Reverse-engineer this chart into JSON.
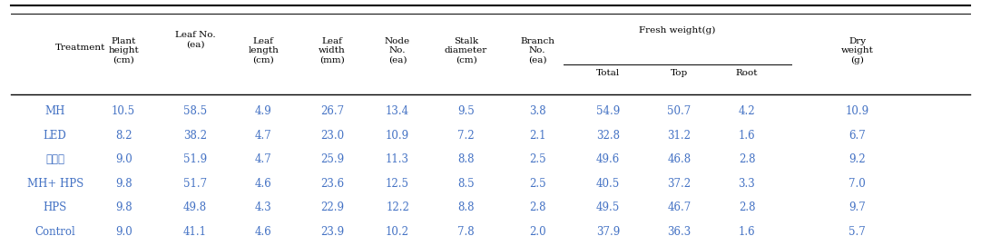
{
  "headers_row1": [
    "Treatment",
    "Plant\nheight\n(cm)",
    "Leaf No.\n(ea)",
    "Leaf\nlength\n(cm)",
    "Leaf\nwidth\n(mm)",
    "Node\nNo.\n(ea)",
    "Stalk\ndiameter\n(cm)",
    "Branch\nNo.\n(ea)",
    "Fresh weight(g)",
    "",
    "",
    "Dry\nweight\n(g)"
  ],
  "headers_row2": [
    "",
    "",
    "",
    "",
    "",
    "",
    "",
    "",
    "Total",
    "Top",
    "Root",
    ""
  ],
  "col_headers_line1": [
    "Treatment",
    "Plant\nheight\n(cm)",
    "Leaf No.\n(ea)",
    "Leaf\nlength\n(cm)",
    "Leaf\nwidth\n(mm)",
    "Node\nNo.\n(ea)",
    "Stalk\ndiameter\n(cm)",
    "Branch\nNo.\n(ea)",
    "Total",
    "Top",
    "Root",
    "Dry\nweight\n(g)"
  ],
  "treatments": [
    "MH",
    "LED",
    "신광원",
    "MH+ HPS",
    "HPS",
    "Control"
  ],
  "data": [
    [
      10.5,
      58.5,
      4.9,
      26.7,
      13.4,
      9.5,
      3.8,
      54.9,
      50.7,
      4.2,
      10.9
    ],
    [
      8.2,
      38.2,
      4.7,
      23.0,
      10.9,
      7.2,
      2.1,
      32.8,
      31.2,
      1.6,
      6.7
    ],
    [
      9.0,
      51.9,
      4.7,
      25.9,
      11.3,
      8.8,
      2.5,
      49.6,
      46.8,
      2.8,
      9.2
    ],
    [
      9.8,
      51.7,
      4.6,
      23.6,
      12.5,
      8.5,
      2.5,
      40.5,
      37.2,
      3.3,
      7.0
    ],
    [
      9.8,
      49.8,
      4.3,
      22.9,
      12.2,
      8.8,
      2.8,
      49.5,
      46.7,
      2.8,
      9.7
    ],
    [
      9.0,
      41.1,
      4.6,
      23.9,
      10.2,
      7.8,
      2.0,
      37.9,
      36.3,
      1.6,
      5.7
    ]
  ],
  "treatment_color": "#4472C4",
  "data_color": "#000000",
  "header_color": "#000000",
  "fresh_weight_header": "Fresh weight(g)",
  "bg_color": "#FFFFFF"
}
